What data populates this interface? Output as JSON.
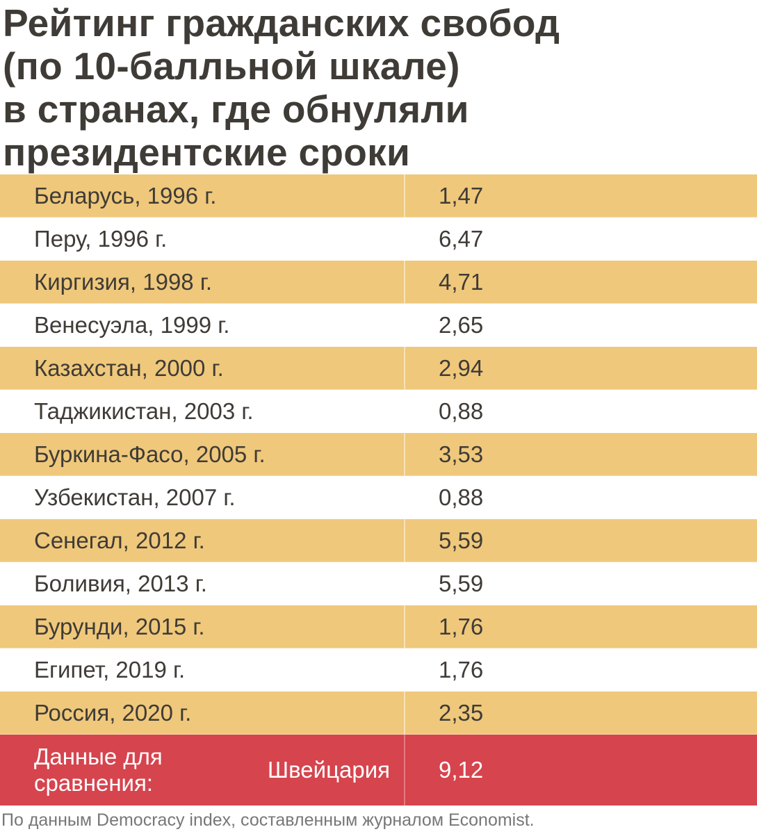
{
  "title": {
    "lines": [
      "Рейтинг гражданских свобод",
      "(по 10-балльной шкале)",
      "в странах, где обнуляли",
      "президентские сроки"
    ]
  },
  "chart_data": {
    "type": "table",
    "title": "Рейтинг гражданских свобод (по 10-балльной шкале) в странах, где обнуляли президентские сроки",
    "rows": [
      {
        "label": "Беларусь, 1996 г.",
        "value": "1,47"
      },
      {
        "label": "Перу, 1996 г.",
        "value": "6,47"
      },
      {
        "label": "Киргизия, 1998 г.",
        "value": "4,71"
      },
      {
        "label": "Венесуэла, 1999 г.",
        "value": "2,65"
      },
      {
        "label": "Казахстан, 2000 г.",
        "value": "2,94"
      },
      {
        "label": "Таджикистан, 2003 г.",
        "value": "0,88"
      },
      {
        "label": "Буркина-Фасо, 2005 г.",
        "value": "3,53"
      },
      {
        "label": "Узбекистан, 2007 г.",
        "value": "0,88"
      },
      {
        "label": "Сенегал, 2012 г.",
        "value": "5,59"
      },
      {
        "label": "Боливия, 2013 г.",
        "value": "5,59"
      },
      {
        "label": "Бурунди, 2015 г.",
        "value": "1,76"
      },
      {
        "label": "Египет, 2019 г.",
        "value": "1,76"
      },
      {
        "label": "Россия, 2020 г.",
        "value": "2,35"
      }
    ],
    "comparison": {
      "label_lines": [
        "Данные для сравнения:",
        "Швейцария"
      ],
      "value": "9,12"
    }
  },
  "colors": {
    "stripe": "#efc87b",
    "highlight": "#d6444e",
    "text": "#3f3b36",
    "note": "#777777"
  },
  "source_note": "По данным Democracy index, составленным журналом Economist."
}
